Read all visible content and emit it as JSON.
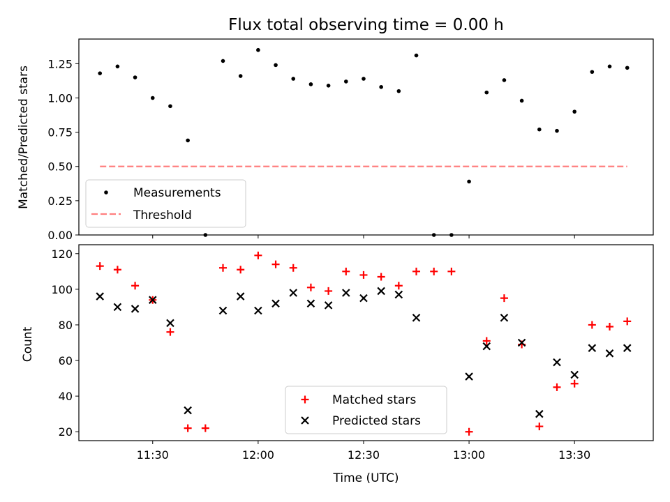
{
  "chart_data": [
    {
      "type": "scatter",
      "title": "Flux total observing time = 0.00 h",
      "xlabel": "",
      "ylabel": "Matched/Predicted stars",
      "ylim": [
        0,
        1.43
      ],
      "yticks": [
        "0.00",
        "0.25",
        "0.50",
        "0.75",
        "1.00",
        "1.25"
      ],
      "legend_placement": "lower-left",
      "x": [
        "11:15",
        "11:20",
        "11:25",
        "11:30",
        "11:35",
        "11:40",
        "11:45",
        "11:50",
        "11:55",
        "12:00",
        "12:05",
        "12:10",
        "12:15",
        "12:20",
        "12:25",
        "12:30",
        "12:35",
        "12:40",
        "12:45",
        "12:50",
        "12:55",
        "13:00",
        "13:05",
        "13:10",
        "13:15",
        "13:20",
        "13:25",
        "13:30",
        "13:35",
        "13:40",
        "13:45"
      ],
      "series": [
        {
          "name": "Measurements",
          "marker": "dot",
          "color": "#000000",
          "values": [
            1.18,
            1.23,
            1.15,
            1.0,
            0.94,
            0.69,
            0.0,
            1.27,
            1.16,
            1.35,
            1.24,
            1.14,
            1.1,
            1.09,
            1.12,
            1.14,
            1.08,
            1.05,
            1.31,
            0.0,
            0.0,
            0.39,
            1.04,
            1.13,
            0.98,
            0.77,
            0.76,
            0.9,
            1.19,
            1.23,
            1.22
          ]
        },
        {
          "name": "Threshold",
          "marker": "dashed-line",
          "color": "#ff7f7f",
          "values": [
            0.5,
            0.5
          ]
        }
      ]
    },
    {
      "type": "scatter",
      "title": "",
      "xlabel": "Time (UTC)",
      "ylabel": "Count",
      "ylim": [
        15,
        125
      ],
      "yticks": [
        "20",
        "40",
        "60",
        "80",
        "100",
        "120"
      ],
      "xticks": [
        "11:30",
        "12:00",
        "12:30",
        "13:00",
        "13:30"
      ],
      "legend_placement": "lower-center",
      "x": [
        "11:15",
        "11:20",
        "11:25",
        "11:30",
        "11:35",
        "11:40",
        "11:45",
        "11:50",
        "11:55",
        "12:00",
        "12:05",
        "12:10",
        "12:15",
        "12:20",
        "12:25",
        "12:30",
        "12:35",
        "12:40",
        "12:45",
        "12:50",
        "12:55",
        "13:00",
        "13:05",
        "13:10",
        "13:15",
        "13:20",
        "13:25",
        "13:30",
        "13:35",
        "13:40",
        "13:45"
      ],
      "series": [
        {
          "name": "Matched stars",
          "marker": "plus",
          "color": "#ff0000",
          "values": [
            113,
            111,
            102,
            94,
            76,
            22,
            22,
            112,
            111,
            119,
            114,
            112,
            101,
            99,
            110,
            108,
            107,
            102,
            110,
            110,
            110,
            20,
            71,
            95,
            69,
            23,
            45,
            47,
            80,
            79,
            82
          ]
        },
        {
          "name": "Predicted stars",
          "marker": "x",
          "color": "#000000",
          "values": [
            96,
            90,
            89,
            94,
            81,
            32,
            null,
            88,
            96,
            88,
            92,
            98,
            92,
            91,
            98,
            95,
            99,
            97,
            84,
            null,
            null,
            51,
            68,
            84,
            70,
            30,
            59,
            52,
            67,
            64,
            67
          ]
        }
      ]
    }
  ]
}
